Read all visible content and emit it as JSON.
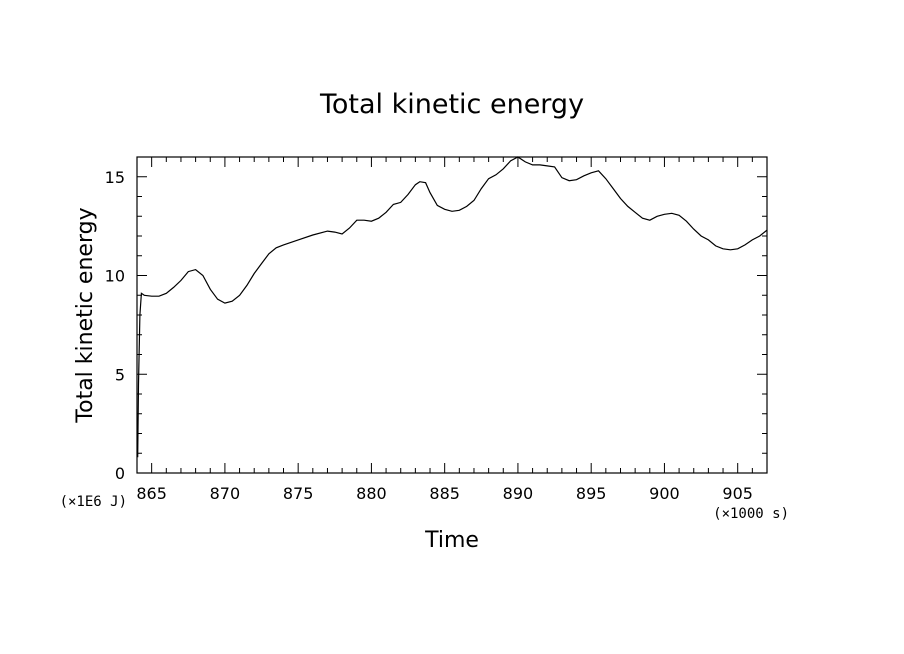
{
  "chart_data": {
    "type": "line",
    "title": "Total kinetic energy",
    "xlabel": "Time",
    "ylabel": "Total kinetic energy",
    "x_unit": "(×1000 s)",
    "y_unit": "(×1E6 J)",
    "xlim": [
      864,
      907
    ],
    "ylim": [
      0,
      16
    ],
    "x_ticks": [
      865,
      870,
      875,
      880,
      885,
      890,
      895,
      900,
      905
    ],
    "y_ticks": [
      0,
      5,
      10,
      15
    ],
    "grid": false,
    "legend": "none",
    "series": [
      {
        "x": [
          864.05,
          864.1,
          864.2,
          864.3,
          864.5,
          865,
          865.5,
          866,
          866.5,
          867,
          867.5,
          868,
          868.5,
          869,
          869.5,
          870,
          870.5,
          871,
          871.5,
          872,
          872.5,
          873,
          873.5,
          874,
          875,
          876,
          877,
          877.5,
          878,
          878.5,
          879,
          879.5,
          880,
          880.5,
          881,
          881.5,
          882,
          882.5,
          883,
          883.3,
          883.7,
          884,
          884.5,
          885,
          885.5,
          886,
          886.5,
          887,
          887.5,
          888,
          888.5,
          889,
          889.5,
          890,
          890.5,
          891,
          891.5,
          892,
          892.5,
          893,
          893.5,
          894,
          894.5,
          895,
          895.5,
          896,
          896.5,
          897,
          897.5,
          898,
          898.5,
          899,
          899.5,
          900,
          900.5,
          901,
          901.5,
          902,
          902.5,
          903,
          903.5,
          904,
          904.5,
          905,
          905.5,
          906,
          906.5,
          907
        ],
        "y": [
          0.8,
          4.5,
          8.0,
          9.1,
          9.0,
          8.95,
          8.95,
          9.1,
          9.4,
          9.75,
          10.2,
          10.3,
          10.0,
          9.3,
          8.8,
          8.6,
          8.7,
          9.0,
          9.5,
          10.1,
          10.6,
          11.1,
          11.4,
          11.55,
          11.8,
          12.05,
          12.25,
          12.2,
          12.1,
          12.4,
          12.8,
          12.8,
          12.75,
          12.9,
          13.2,
          13.6,
          13.7,
          14.1,
          14.6,
          14.75,
          14.7,
          14.2,
          13.55,
          13.35,
          13.25,
          13.3,
          13.5,
          13.8,
          14.4,
          14.9,
          15.1,
          15.4,
          15.8,
          16.0,
          15.75,
          15.6,
          15.6,
          15.55,
          15.5,
          14.95,
          14.8,
          14.85,
          15.05,
          15.2,
          15.3,
          14.9,
          14.4,
          13.9,
          13.5,
          13.2,
          12.9,
          12.8,
          13.0,
          13.1,
          13.15,
          13.05,
          12.75,
          12.35,
          12.0,
          11.8,
          11.5,
          11.35,
          11.3,
          11.35,
          11.55,
          11.8,
          12.0,
          12.3
        ]
      }
    ]
  }
}
